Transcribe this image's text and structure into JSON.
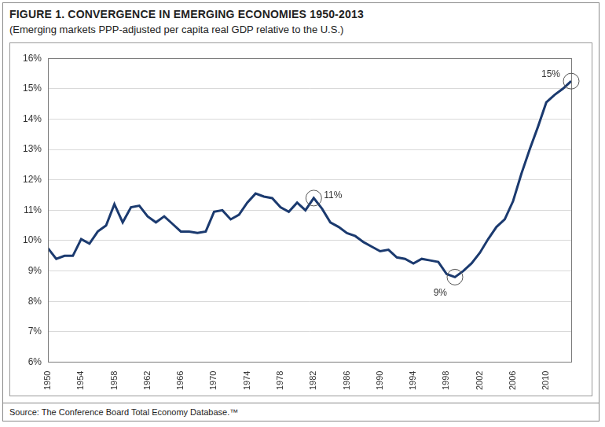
{
  "chart_data": {
    "type": "line",
    "title": "FIGURE 1. CONVERGENCE IN EMERGING ECONOMIES 1950-2013",
    "subtitle": "(Emerging markets PPP-adjusted per capita real GDP relative to the U.S.)",
    "source": "Source: The Conference Board Total Economy Database.™",
    "categories": [
      "1950",
      null,
      null,
      null,
      "1954",
      null,
      null,
      null,
      "1958",
      null,
      null,
      null,
      "1962",
      null,
      null,
      null,
      "1966",
      null,
      null,
      null,
      "1970",
      null,
      null,
      null,
      "1974",
      null,
      null,
      null,
      "1978",
      null,
      null,
      null,
      "1982",
      null,
      null,
      null,
      "1986",
      null,
      null,
      null,
      "1990",
      null,
      null,
      null,
      "1994",
      null,
      null,
      null,
      "1998",
      null,
      null,
      null,
      "2002",
      null,
      null,
      null,
      "2006",
      null,
      null,
      null,
      "2010",
      null,
      null,
      null
    ],
    "values": [
      9.75,
      9.4,
      9.5,
      9.5,
      10.05,
      9.9,
      10.3,
      10.5,
      11.2,
      10.6,
      11.1,
      11.15,
      10.8,
      10.6,
      10.8,
      10.55,
      10.3,
      10.3,
      10.25,
      10.3,
      10.95,
      11.0,
      10.7,
      10.85,
      11.25,
      11.55,
      11.45,
      11.4,
      11.1,
      10.95,
      11.25,
      11.0,
      11.4,
      11.05,
      10.6,
      10.45,
      10.25,
      10.15,
      9.95,
      9.8,
      9.65,
      9.7,
      9.45,
      9.4,
      9.25,
      9.4,
      9.35,
      9.3,
      8.9,
      8.8,
      9.0,
      9.25,
      9.6,
      10.05,
      10.45,
      10.7,
      11.3,
      12.2,
      13.0,
      13.75,
      14.55,
      14.8,
      15.0,
      15.25
    ],
    "color": "#1b3a6f",
    "ylim": [
      6,
      16
    ],
    "yticks": [
      {
        "value": 6,
        "label": "6%"
      },
      {
        "value": 7,
        "label": "7%"
      },
      {
        "value": 8,
        "label": "8%"
      },
      {
        "value": 9,
        "label": "9%"
      },
      {
        "value": 10,
        "label": "10%"
      },
      {
        "value": 11,
        "label": "11%"
      },
      {
        "value": 12,
        "label": "12%"
      },
      {
        "value": 13,
        "label": "13%"
      },
      {
        "value": 14,
        "label": "14%"
      },
      {
        "value": 15,
        "label": "15%"
      },
      {
        "value": 16,
        "label": "16%"
      }
    ],
    "grid": true,
    "annotations": [
      {
        "text": "11%",
        "point": 32
      },
      {
        "text": "9%",
        "point": 49
      },
      {
        "text": "15%",
        "point": 63
      }
    ]
  }
}
